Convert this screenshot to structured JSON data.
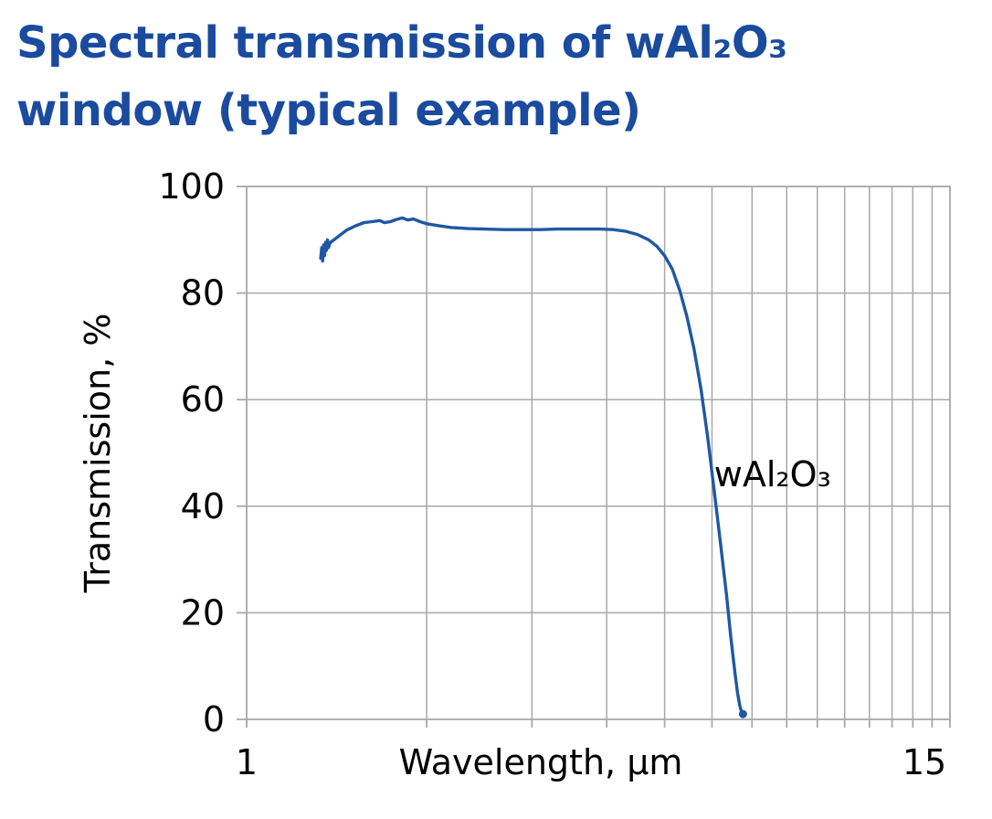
{
  "page": {
    "title_lines": [
      "Spectral transmission of wAl₂O₃",
      "window (typical example)"
    ],
    "title_color": "#1a4b9e"
  },
  "chart_data": {
    "type": "line",
    "title": "Spectral transmission of wAl₂O₃ window (typical example)",
    "grid": true,
    "grid_color": "#a8a8a8",
    "x_axis": {
      "label": "Wavelength, μm",
      "scale": "log",
      "min": 1,
      "max": 15,
      "gridline_values": [
        2,
        3,
        4,
        5,
        6,
        7,
        8,
        9,
        10,
        11,
        12,
        13,
        14
      ],
      "tick_labels": [
        {
          "value": 1,
          "label": "1"
        },
        {
          "value": 15,
          "label": "15"
        }
      ]
    },
    "y_axis": {
      "label": "Transmission, %",
      "min": 0,
      "max": 100,
      "ticks": [
        0,
        20,
        40,
        60,
        80,
        100
      ]
    },
    "annotation": {
      "text": "wAl₂O₃",
      "x": 6.05,
      "y": 46
    },
    "series": [
      {
        "name": "wAl₂O₃",
        "color": "#1f57a4",
        "points": [
          [
            1.33,
            86.5
          ],
          [
            1.335,
            88.5
          ],
          [
            1.34,
            86.0
          ],
          [
            1.345,
            89.0
          ],
          [
            1.35,
            87.0
          ],
          [
            1.355,
            89.5
          ],
          [
            1.36,
            88.0
          ],
          [
            1.365,
            90.0
          ],
          [
            1.37,
            88.5
          ],
          [
            1.38,
            89.5
          ],
          [
            1.4,
            90.0
          ],
          [
            1.43,
            90.8
          ],
          [
            1.47,
            91.8
          ],
          [
            1.52,
            92.6
          ],
          [
            1.57,
            93.2
          ],
          [
            1.62,
            93.4
          ],
          [
            1.67,
            93.6
          ],
          [
            1.7,
            93.2
          ],
          [
            1.74,
            93.4
          ],
          [
            1.78,
            93.8
          ],
          [
            1.82,
            94.1
          ],
          [
            1.86,
            93.7
          ],
          [
            1.9,
            93.9
          ],
          [
            1.95,
            93.4
          ],
          [
            2.0,
            93.0
          ],
          [
            2.1,
            92.6
          ],
          [
            2.2,
            92.3
          ],
          [
            2.35,
            92.1
          ],
          [
            2.5,
            92.0
          ],
          [
            2.7,
            91.9
          ],
          [
            2.9,
            91.9
          ],
          [
            3.1,
            91.9
          ],
          [
            3.3,
            92.0
          ],
          [
            3.5,
            92.0
          ],
          [
            3.7,
            92.0
          ],
          [
            3.9,
            92.0
          ],
          [
            4.1,
            91.9
          ],
          [
            4.3,
            91.6
          ],
          [
            4.5,
            91.0
          ],
          [
            4.7,
            90.0
          ],
          [
            4.85,
            88.8
          ],
          [
            5.0,
            87.0
          ],
          [
            5.15,
            84.5
          ],
          [
            5.3,
            80.5
          ],
          [
            5.45,
            75.5
          ],
          [
            5.6,
            69.5
          ],
          [
            5.75,
            62.0
          ],
          [
            5.9,
            53.0
          ],
          [
            6.05,
            43.0
          ],
          [
            6.2,
            33.0
          ],
          [
            6.35,
            23.0
          ],
          [
            6.45,
            15.5
          ],
          [
            6.55,
            9.0
          ],
          [
            6.62,
            5.0
          ],
          [
            6.68,
            2.5
          ],
          [
            6.72,
            1.5
          ],
          [
            6.76,
            1.0
          ]
        ]
      }
    ]
  }
}
